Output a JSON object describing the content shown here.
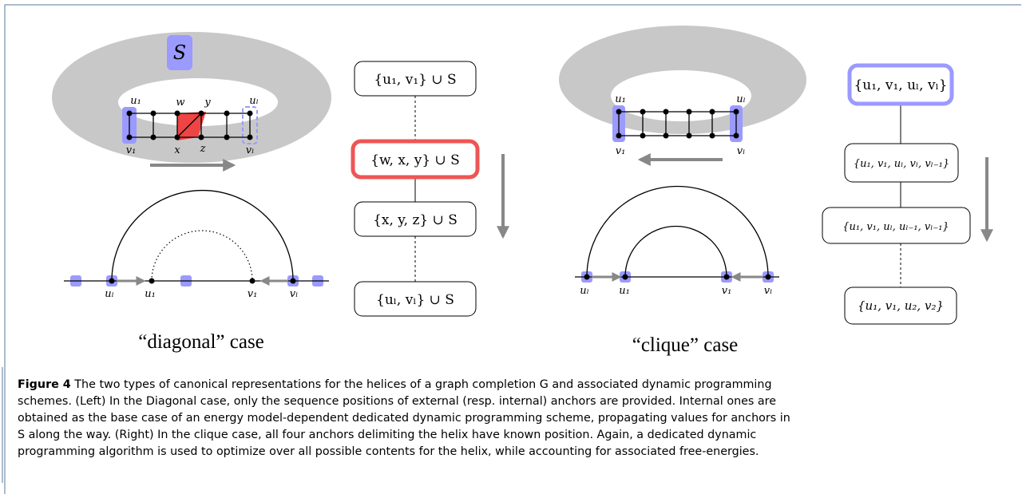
{
  "left": {
    "set_label": "S",
    "top_labels": [
      "u₁",
      "w",
      "y",
      "uₗ"
    ],
    "bottom_labels": [
      "v₁",
      "x",
      "z",
      "vₗ"
    ],
    "line_labels": [
      "uₗ",
      "u₁",
      "v₁",
      "vₗ"
    ],
    "case_label": "“diagonal” case",
    "nodes": [
      "{u₁, v₁} ∪ S",
      "{w, x, y} ∪ S",
      "{x, y, z} ∪ S",
      "{uₗ, vₗ} ∪ S"
    ]
  },
  "right": {
    "top_labels": [
      "u₁",
      "uₗ"
    ],
    "bottom_labels": [
      "v₁",
      "vₗ"
    ],
    "line_labels": [
      "uₗ",
      "u₁",
      "v₁",
      "vₗ"
    ],
    "case_label": "“clique” case",
    "nodes": [
      "{u₁, v₁, uₗ, vₗ}",
      "{u₁, v₁, uₗ, vₗ, vₗ₋₁}",
      "{u₁, v₁, uₗ, uₗ₋₁, vₗ₋₁}",
      "{u₁, v₁, u₂, v₂}"
    ]
  },
  "caption": {
    "label": "Figure 4",
    "lines": [
      " The two types of canonical representations for the helices of a graph completion G and associated dynamic programming",
      "schemes. (Left) In the Diagonal case, only the sequence positions of external (resp. internal) anchors are provided. Internal ones are",
      "obtained as the base case of an energy model-dependent dedicated dynamic programming scheme, propagating values for anchors in",
      "S along the way. (Right) In the clique case, all four anchors delimiting the helix have known position. Again, a dedicated dynamic",
      "programming algorithm is used to optimize over all possible contents for the helix, while accounting for associated free-energies."
    ]
  }
}
